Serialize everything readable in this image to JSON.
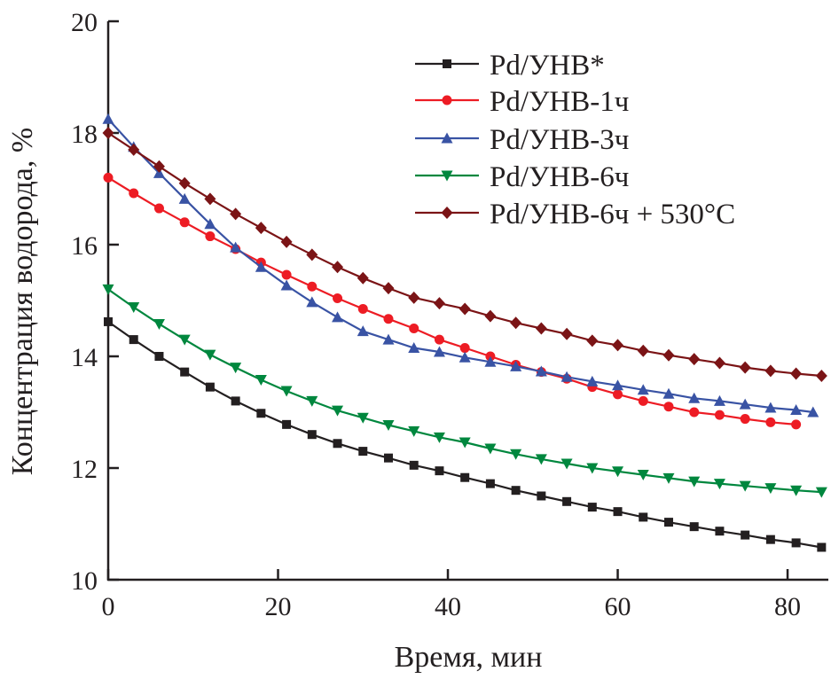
{
  "chart_data": {
    "type": "line",
    "title": "",
    "xlabel": "Время, мин",
    "ylabel": "Концентрация водорода, %",
    "xlim": [
      0,
      84.8
    ],
    "ylim": [
      10,
      20
    ],
    "xticks": [
      0,
      20,
      40,
      60,
      80
    ],
    "yticks": [
      10,
      12,
      14,
      16,
      18,
      20
    ],
    "xtick_labels": [
      "0",
      "20",
      "40",
      "60",
      "80"
    ],
    "ytick_labels": [
      "10",
      "12",
      "14",
      "16",
      "18",
      "20"
    ],
    "grid": false,
    "legend_position": "top-right",
    "series": [
      {
        "name": "Pd/УНВ*",
        "color": "#231f20",
        "marker": "square",
        "x": [
          0,
          3,
          6,
          9,
          12,
          15,
          18,
          21,
          24,
          27,
          30,
          33,
          36,
          39,
          42,
          45,
          48,
          51,
          54,
          57,
          60,
          63,
          66,
          69,
          72,
          75,
          78,
          81,
          84
        ],
        "y": [
          14.62,
          14.3,
          14.0,
          13.72,
          13.45,
          13.2,
          12.98,
          12.78,
          12.6,
          12.44,
          12.3,
          12.18,
          12.05,
          11.95,
          11.83,
          11.72,
          11.6,
          11.5,
          11.4,
          11.3,
          11.22,
          11.12,
          11.03,
          10.95,
          10.87,
          10.8,
          10.72,
          10.66,
          10.58
        ]
      },
      {
        "name": "Pd/УНВ-1ч",
        "color": "#ed1c24",
        "marker": "circle",
        "x": [
          0,
          3,
          6,
          9,
          12,
          15,
          18,
          21,
          24,
          27,
          30,
          33,
          36,
          39,
          42,
          45,
          48,
          51,
          54,
          57,
          60,
          63,
          66,
          69,
          72,
          75,
          78,
          81
        ],
        "y": [
          17.2,
          16.92,
          16.65,
          16.4,
          16.15,
          15.92,
          15.68,
          15.46,
          15.25,
          15.04,
          14.85,
          14.67,
          14.5,
          14.3,
          14.15,
          14.0,
          13.85,
          13.72,
          13.6,
          13.45,
          13.32,
          13.2,
          13.1,
          13.0,
          12.95,
          12.88,
          12.82,
          12.78
        ]
      },
      {
        "name": "Pd/УНВ-3ч",
        "color": "#3953a4",
        "marker": "triangle-up",
        "x": [
          0,
          3,
          6,
          9,
          12,
          15,
          18,
          21,
          24,
          27,
          30,
          33,
          36,
          39,
          42,
          45,
          48,
          51,
          54,
          57,
          60,
          63,
          66,
          69,
          72,
          75,
          78,
          81,
          83
        ],
        "y": [
          18.25,
          17.75,
          17.28,
          16.82,
          16.37,
          15.95,
          15.6,
          15.27,
          14.97,
          14.7,
          14.45,
          14.3,
          14.15,
          14.08,
          13.98,
          13.9,
          13.82,
          13.73,
          13.63,
          13.55,
          13.48,
          13.4,
          13.33,
          13.25,
          13.2,
          13.14,
          13.08,
          13.04,
          13.0
        ]
      },
      {
        "name": "Pd/УНВ-6ч",
        "color": "#00873e",
        "marker": "triangle-down",
        "x": [
          0,
          3,
          6,
          9,
          12,
          15,
          18,
          21,
          24,
          27,
          30,
          33,
          36,
          39,
          42,
          45,
          48,
          51,
          54,
          57,
          60,
          63,
          66,
          69,
          72,
          75,
          78,
          81,
          84
        ],
        "y": [
          15.2,
          14.88,
          14.58,
          14.3,
          14.03,
          13.8,
          13.58,
          13.38,
          13.2,
          13.03,
          12.9,
          12.77,
          12.66,
          12.55,
          12.46,
          12.35,
          12.25,
          12.16,
          12.08,
          12.0,
          11.94,
          11.88,
          11.82,
          11.76,
          11.72,
          11.68,
          11.64,
          11.6,
          11.57
        ]
      },
      {
        "name": "Pd/УНВ-6ч + 530°C",
        "color": "#7b1416",
        "marker": "diamond",
        "x": [
          0,
          3,
          6,
          9,
          12,
          15,
          18,
          21,
          24,
          27,
          30,
          33,
          36,
          39,
          42,
          45,
          48,
          51,
          54,
          57,
          60,
          63,
          66,
          69,
          72,
          75,
          78,
          81,
          84
        ],
        "y": [
          18.0,
          17.7,
          17.4,
          17.1,
          16.82,
          16.55,
          16.3,
          16.05,
          15.82,
          15.6,
          15.4,
          15.22,
          15.05,
          14.95,
          14.85,
          14.72,
          14.6,
          14.5,
          14.4,
          14.28,
          14.2,
          14.1,
          14.02,
          13.95,
          13.88,
          13.8,
          13.74,
          13.69,
          13.65
        ]
      }
    ]
  }
}
